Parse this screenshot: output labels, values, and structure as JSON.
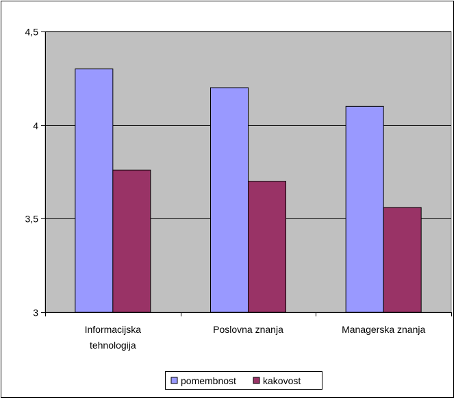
{
  "chart_data": {
    "type": "bar",
    "categories": [
      [
        "Informacijska",
        "tehnologija"
      ],
      [
        "Poslovna znanja"
      ],
      [
        "Managerska znanja"
      ]
    ],
    "series": [
      {
        "name": "pomembnost",
        "values": [
          4.3,
          4.2,
          4.1
        ]
      },
      {
        "name": "kakovost",
        "values": [
          3.76,
          3.7,
          3.56
        ]
      }
    ],
    "ylim": [
      3,
      4.5
    ],
    "yticks": [
      "3",
      "3,5",
      "4",
      "4,5"
    ],
    "ytick_values": [
      3,
      3.5,
      4,
      4.5
    ],
    "grid": "horizontal",
    "legend_position": "bottom",
    "colors": {
      "plot_background": "#C0C0C0",
      "pomembnost": "#9999FF",
      "kakovost": "#993366",
      "grid": "#000000"
    }
  }
}
